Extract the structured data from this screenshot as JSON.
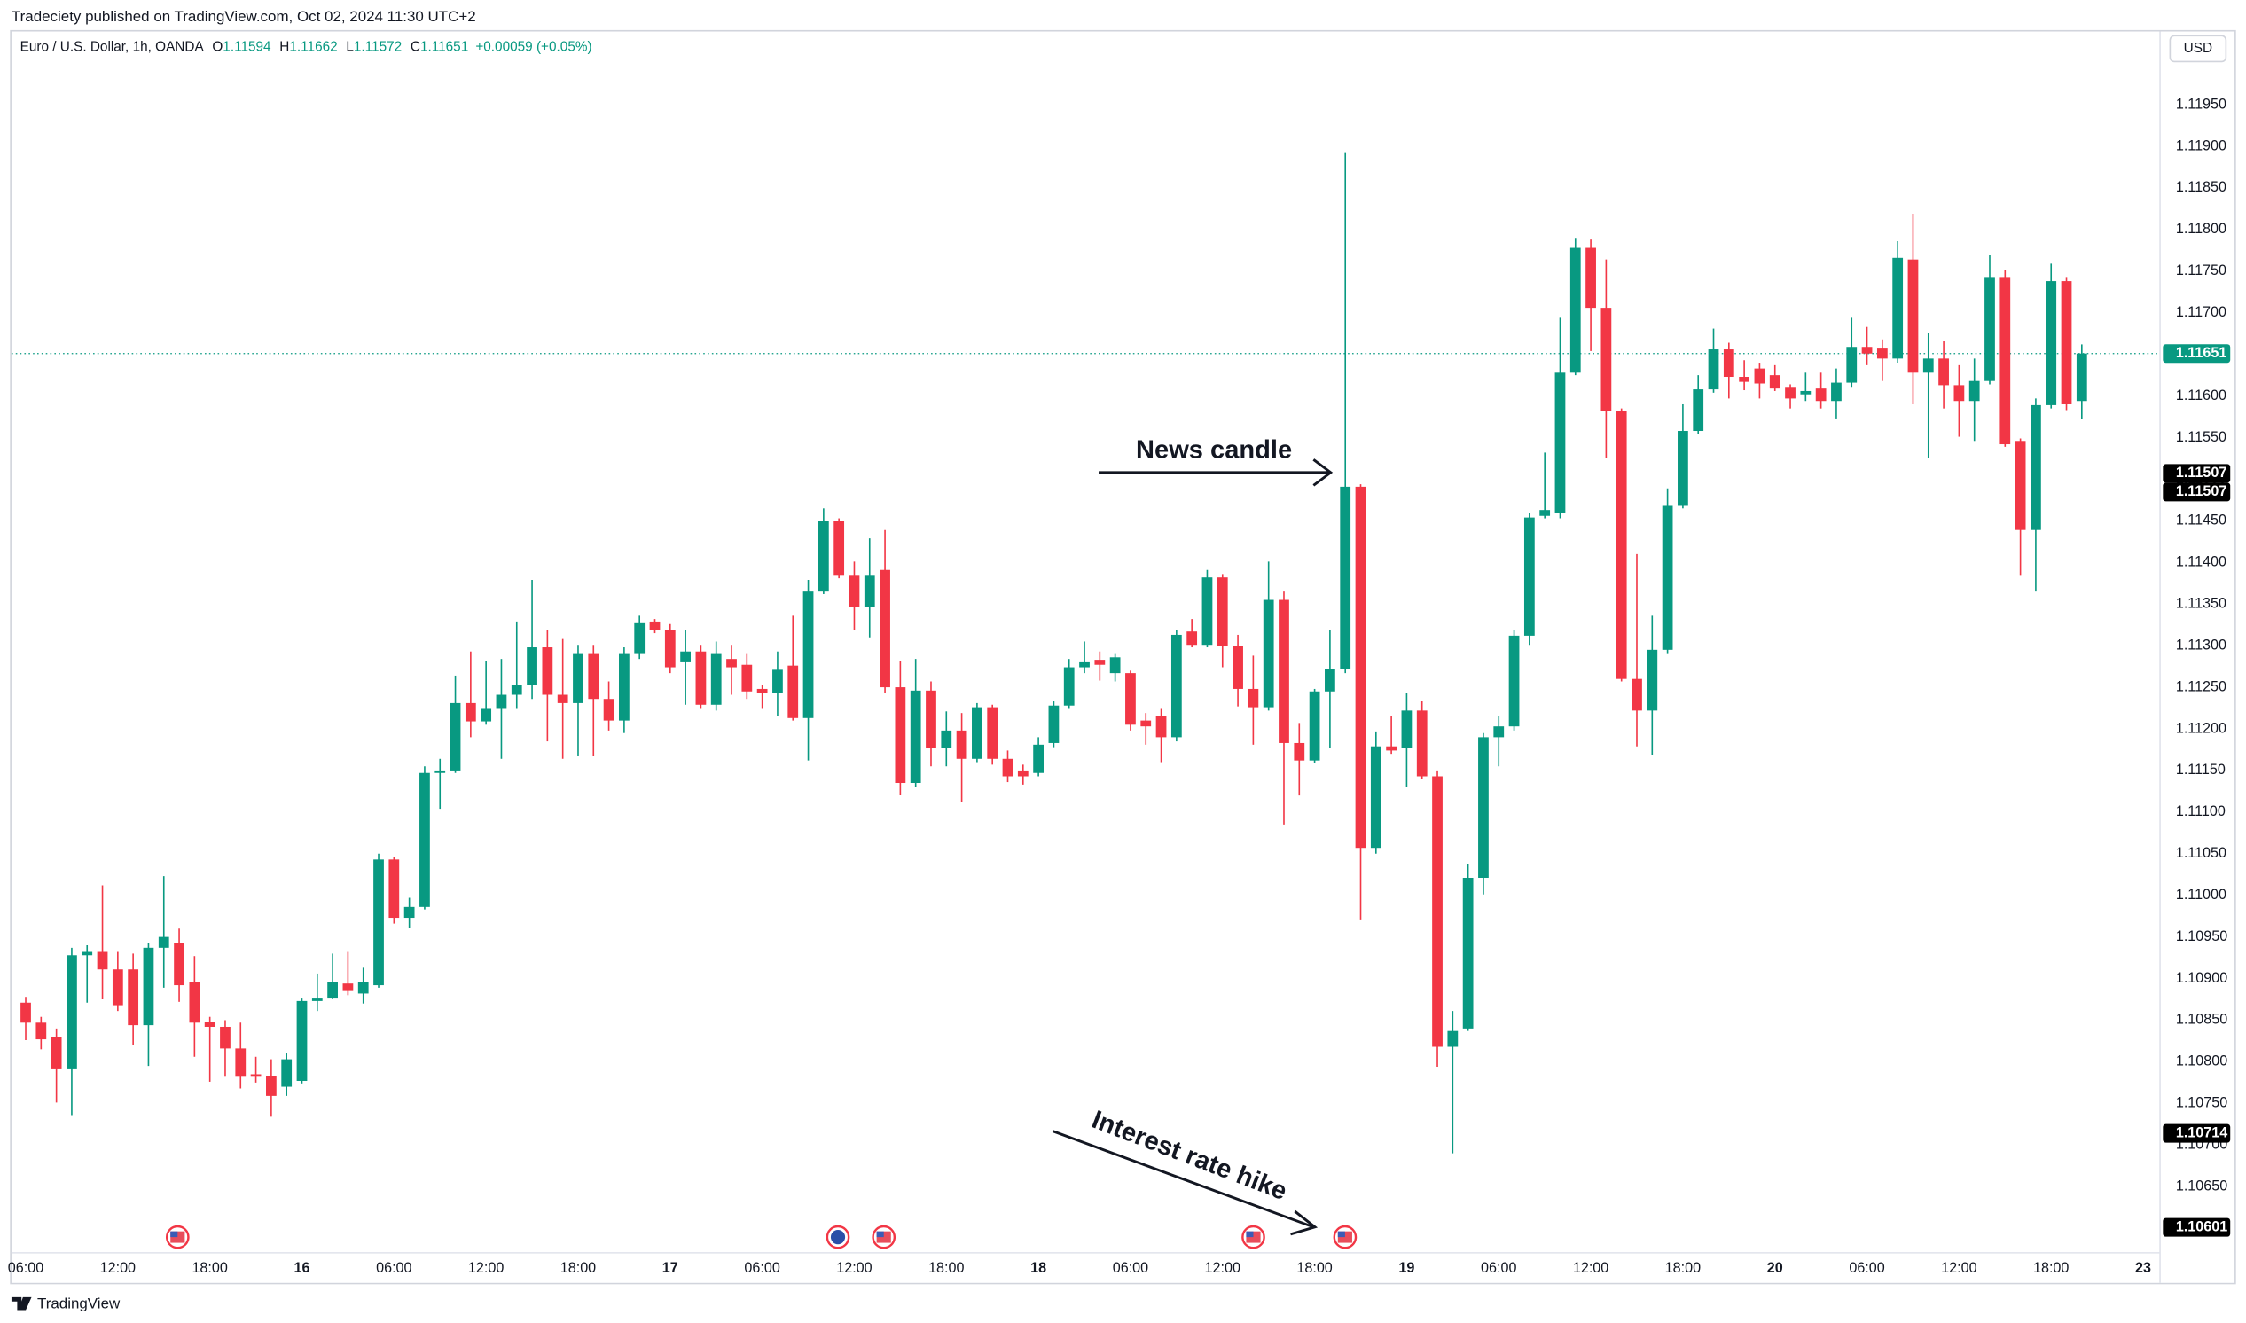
{
  "chart_data": {
    "type": "candlestick",
    "publisher_line": "Tradeciety published on TradingView.com, Oct 02, 2024 11:30 UTC+2",
    "symbol": "Euro / U.S. Dollar, 1h, OANDA",
    "ohlc_labels": [
      "O",
      "H",
      "L",
      "C"
    ],
    "change": "+0.00059 (+0.05%)",
    "currency": "USD",
    "footer": "TradingView",
    "annotations": [
      "News candle",
      "Interest rate hike"
    ],
    "up_color": "#089981",
    "down_color": "#f23645",
    "last_price_line": true,
    "grid": false,
    "open": [
      1.10871,
      1.10847,
      1.1083,
      1.10792,
      1.10928,
      1.10932,
      1.10911,
      1.10911,
      1.10844,
      1.10937,
      1.10943,
      1.10896,
      1.10848,
      1.10842,
      1.10816,
      1.10785,
      1.10783,
      1.1077,
      1.10777,
      1.10873,
      1.10876,
      1.10894,
      1.10882,
      1.10892,
      1.11043,
      1.10973,
      1.10986,
      1.11147,
      1.1115,
      1.11231,
      1.11209,
      1.11224,
      1.11241,
      1.11253,
      1.11298,
      1.11241,
      1.11231,
      1.11291,
      1.11236,
      1.1121,
      1.11291,
      1.11329,
      1.11319,
      1.1128,
      1.11293,
      1.11229,
      1.11284,
      1.11277,
      1.11248,
      1.11243,
      1.11276,
      1.11213,
      1.11365,
      1.1145,
      1.11384,
      1.11346,
      1.11391,
      1.1125,
      1.11135,
      1.11246,
      1.11177,
      1.11198,
      1.11164,
      1.11226,
      1.11164,
      1.1115,
      1.11147,
      1.11183,
      1.11228,
      1.11274,
      1.11283,
      1.11267,
      1.11267,
      1.1121,
      1.11215,
      1.1119,
      1.11317,
      1.11301,
      1.11382,
      1.113,
      1.11248,
      1.11226,
      1.11355,
      1.11183,
      1.11162,
      1.11245,
      1.11272,
      1.11491,
      1.11057,
      1.11179,
      1.11177,
      1.11222,
      1.11143,
      1.10818,
      1.1084,
      1.11021,
      1.1119,
      1.11203,
      1.11312,
      1.11456,
      1.1146,
      1.11628,
      1.11778,
      1.11706,
      1.11582,
      1.1126,
      1.11222,
      1.11295,
      1.11468,
      1.11558,
      1.11608,
      1.11656,
      1.11623,
      1.11633,
      1.11625,
      1.11611,
      1.11602,
      1.11609,
      1.11594,
      1.11616,
      1.11659,
      1.11657,
      1.11645,
      1.11764,
      1.11628,
      1.11645,
      1.11613,
      1.11594,
      1.11618,
      1.11743,
      1.11546,
      1.11439,
      1.11589,
      1.11738,
      1.11594
    ],
    "high": [
      1.10878,
      1.10854,
      1.1084,
      1.10937,
      1.1094,
      1.11012,
      1.10932,
      1.1093,
      1.10943,
      1.11023,
      1.1096,
      1.10927,
      1.10854,
      1.1085,
      1.10847,
      1.10806,
      1.10803,
      1.1081,
      1.10876,
      1.10906,
      1.1093,
      1.10932,
      1.10913,
      1.1105,
      1.11046,
      1.10997,
      1.11155,
      1.11164,
      1.11264,
      1.11293,
      1.11281,
      1.11284,
      1.11329,
      1.11379,
      1.11319,
      1.11308,
      1.11301,
      1.11301,
      1.11257,
      1.11298,
      1.11336,
      1.11332,
      1.11326,
      1.11319,
      1.11301,
      1.11305,
      1.11301,
      1.11291,
      1.11253,
      1.11293,
      1.11336,
      1.11379,
      1.11465,
      1.11453,
      1.11401,
      1.11429,
      1.11439,
      1.11281,
      1.11284,
      1.11257,
      1.11221,
      1.11219,
      1.11231,
      1.11229,
      1.11174,
      1.11157,
      1.1119,
      1.11233,
      1.11284,
      1.11305,
      1.11293,
      1.11291,
      1.1127,
      1.11219,
      1.11224,
      1.11319,
      1.11332,
      1.11391,
      1.11386,
      1.11313,
      1.11288,
      1.11401,
      1.11365,
      1.11207,
      1.11248,
      1.11319,
      1.11893,
      1.11494,
      1.11197,
      1.11215,
      1.11243,
      1.11233,
      1.1115,
      1.10861,
      1.11038,
      1.11195,
      1.11215,
      1.11319,
      1.1146,
      1.11532,
      1.11694,
      1.1179,
      1.11788,
      1.11764,
      1.11585,
      1.1141,
      1.11336,
      1.11489,
      1.1159,
      1.11625,
      1.11681,
      1.11664,
      1.11643,
      1.1164,
      1.11637,
      1.11614,
      1.11628,
      1.11628,
      1.11633,
      1.11694,
      1.11683,
      1.11668,
      1.11786,
      1.11819,
      1.11676,
      1.11666,
      1.11637,
      1.11645,
      1.11769,
      1.11752,
      1.11549,
      1.11597,
      1.11759,
      1.11743,
      1.11662
    ],
    "low": [
      1.10826,
      1.10815,
      1.10751,
      1.10736,
      1.10871,
      1.10875,
      1.10861,
      1.1082,
      1.10795,
      1.10889,
      1.10872,
      1.10806,
      1.10776,
      1.10782,
      1.10768,
      1.10775,
      1.10734,
      1.10759,
      1.10774,
      1.10861,
      1.10875,
      1.1088,
      1.1087,
      1.10889,
      1.10966,
      1.10961,
      1.10983,
      1.11104,
      1.11147,
      1.1119,
      1.11205,
      1.11164,
      1.11224,
      1.11236,
      1.11185,
      1.11164,
      1.11167,
      1.11167,
      1.11198,
      1.11195,
      1.11284,
      1.11315,
      1.11267,
      1.11229,
      1.11224,
      1.11222,
      1.11241,
      1.11236,
      1.11224,
      1.11215,
      1.1121,
      1.11162,
      1.11362,
      1.11381,
      1.11319,
      1.1131,
      1.11243,
      1.11121,
      1.1113,
      1.11155,
      1.11155,
      1.11112,
      1.1116,
      1.11157,
      1.11136,
      1.11133,
      1.11143,
      1.11178,
      1.11224,
      1.11267,
      1.11258,
      1.11257,
      1.11198,
      1.11181,
      1.1116,
      1.11185,
      1.11298,
      1.11298,
      1.11274,
      1.11227,
      1.11181,
      1.11222,
      1.11085,
      1.1112,
      1.11159,
      1.11177,
      1.11267,
      1.10971,
      1.1105,
      1.1117,
      1.1113,
      1.1114,
      1.10794,
      1.1069,
      1.10837,
      1.11001,
      1.11155,
      1.11198,
      1.11301,
      1.11453,
      1.11453,
      1.11625,
      1.11654,
      1.11525,
      1.11257,
      1.11179,
      1.11169,
      1.11291,
      1.11465,
      1.11554,
      1.11604,
      1.11597,
      1.11607,
      1.11597,
      1.11606,
      1.11585,
      1.11594,
      1.11585,
      1.11573,
      1.11611,
      1.11637,
      1.11618,
      1.1164,
      1.1159,
      1.11525,
      1.11585,
      1.11551,
      1.11546,
      1.11614,
      1.11539,
      1.11384,
      1.11365,
      1.11585,
      1.11583,
      1.11572
    ],
    "close": [
      1.10847,
      1.10827,
      1.10792,
      1.10928,
      1.10932,
      1.10911,
      1.10868,
      1.10844,
      1.10937,
      1.1095,
      1.10892,
      1.10847,
      1.10842,
      1.10816,
      1.10782,
      1.10782,
      1.10759,
      1.10803,
      1.10873,
      1.10876,
      1.10896,
      1.10885,
      1.10896,
      1.11043,
      1.10973,
      1.10986,
      1.11147,
      1.1115,
      1.11231,
      1.11209,
      1.11224,
      1.11241,
      1.11253,
      1.11298,
      1.11241,
      1.11231,
      1.11291,
      1.11236,
      1.1121,
      1.11291,
      1.11327,
      1.11319,
      1.11274,
      1.11293,
      1.11229,
      1.11291,
      1.11274,
      1.11245,
      1.11243,
      1.11271,
      1.11213,
      1.11365,
      1.1145,
      1.11384,
      1.11346,
      1.11384,
      1.1125,
      1.11135,
      1.11246,
      1.11177,
      1.11198,
      1.11164,
      1.11226,
      1.11164,
      1.11143,
      1.11143,
      1.11181,
      1.11228,
      1.11274,
      1.1128,
      1.11277,
      1.11286,
      1.11205,
      1.11203,
      1.1119,
      1.11313,
      1.11301,
      1.11382,
      1.113,
      1.11248,
      1.11226,
      1.11355,
      1.11183,
      1.11162,
      1.11245,
      1.11272,
      1.11491,
      1.11057,
      1.11179,
      1.11174,
      1.11222,
      1.11143,
      1.10818,
      1.10837,
      1.11021,
      1.1119,
      1.11203,
      1.11312,
      1.11454,
      1.11463,
      1.11628,
      1.11778,
      1.11706,
      1.11582,
      1.1126,
      1.11222,
      1.11295,
      1.11468,
      1.11558,
      1.11608,
      1.11656,
      1.11623,
      1.11617,
      1.11615,
      1.11609,
      1.11597,
      1.11606,
      1.11594,
      1.11616,
      1.11659,
      1.11651,
      1.11645,
      1.11766,
      1.11628,
      1.11645,
      1.11613,
      1.11594,
      1.11618,
      1.11743,
      1.11542,
      1.11439,
      1.11589,
      1.11738,
      1.1159,
      1.11651
    ],
    "xlim": [
      -0.93,
      139.1
    ],
    "xticks": [
      {
        "value": 0,
        "label": "06:00"
      },
      {
        "value": 6,
        "label": "12:00"
      },
      {
        "value": 12,
        "label": "18:00"
      },
      {
        "value": 18,
        "label": "16"
      },
      {
        "value": 24,
        "label": "06:00"
      },
      {
        "value": 30,
        "label": "12:00"
      },
      {
        "value": 36,
        "label": "18:00"
      },
      {
        "value": 42,
        "label": "17"
      },
      {
        "value": 48,
        "label": "06:00"
      },
      {
        "value": 54,
        "label": "12:00"
      },
      {
        "value": 60,
        "label": "18:00"
      },
      {
        "value": 66,
        "label": "18"
      },
      {
        "value": 72,
        "label": "06:00"
      },
      {
        "value": 78,
        "label": "12:00"
      },
      {
        "value": 84,
        "label": "18:00"
      },
      {
        "value": 90,
        "label": "19"
      },
      {
        "value": 96,
        "label": "06:00"
      },
      {
        "value": 102,
        "label": "12:00"
      },
      {
        "value": 108,
        "label": "18:00"
      },
      {
        "value": 114,
        "label": "20"
      },
      {
        "value": 120,
        "label": "06:00"
      },
      {
        "value": 126,
        "label": "12:00"
      },
      {
        "value": 132,
        "label": "18:00"
      },
      {
        "value": 138,
        "label": "23"
      }
    ],
    "ylim": [
      1.10536,
      1.12038
    ],
    "yticks": [
      {
        "value": 1.1195,
        "label": "1.11950"
      },
      {
        "value": 1.119,
        "label": "1.11900"
      },
      {
        "value": 1.1185,
        "label": "1.11850"
      },
      {
        "value": 1.118,
        "label": "1.11800"
      },
      {
        "value": 1.1175,
        "label": "1.11750"
      },
      {
        "value": 1.117,
        "label": "1.11700"
      },
      {
        "value": 1.1165,
        "label": "1.11650"
      },
      {
        "value": 1.116,
        "label": "1.11600"
      },
      {
        "value": 1.1155,
        "label": "1.11550"
      },
      {
        "value": 1.115,
        "label": "1.11500"
      },
      {
        "value": 1.1145,
        "label": "1.11450"
      },
      {
        "value": 1.114,
        "label": "1.11400"
      },
      {
        "value": 1.1135,
        "label": "1.11350"
      },
      {
        "value": 1.113,
        "label": "1.11300"
      },
      {
        "value": 1.1125,
        "label": "1.11250"
      },
      {
        "value": 1.112,
        "label": "1.11200"
      },
      {
        "value": 1.1115,
        "label": "1.11150"
      },
      {
        "value": 1.111,
        "label": "1.11100"
      },
      {
        "value": 1.1105,
        "label": "1.11050"
      },
      {
        "value": 1.11,
        "label": "1.11000"
      },
      {
        "value": 1.1095,
        "label": "1.10950"
      },
      {
        "value": 1.109,
        "label": "1.10900"
      },
      {
        "value": 1.1085,
        "label": "1.10850"
      },
      {
        "value": 1.108,
        "label": "1.10800"
      },
      {
        "value": 1.1075,
        "label": "1.10750"
      },
      {
        "value": 1.107,
        "label": "1.10700"
      },
      {
        "value": 1.1065,
        "label": "1.10650"
      }
    ],
    "price_markers": [
      {
        "value": 1.11651,
        "color": "#089981"
      },
      {
        "value": 1.11507,
        "color": "#000000"
      },
      {
        "value": 1.11507,
        "color": "#000000"
      },
      {
        "value": 1.10714,
        "color": "#000000"
      },
      {
        "value": 1.10601,
        "color": "#000000"
      }
    ]
  }
}
